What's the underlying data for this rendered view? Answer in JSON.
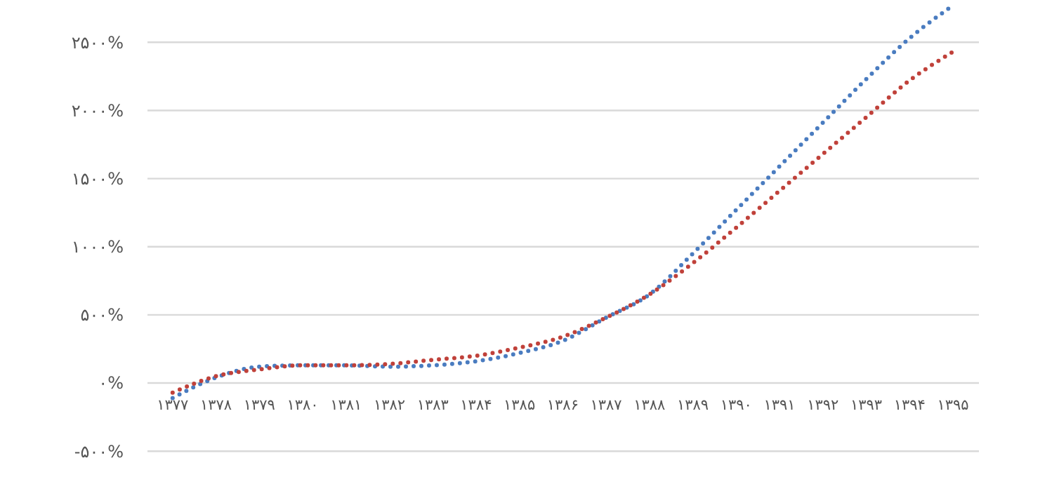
{
  "chart_data": {
    "type": "line",
    "categories": [
      "۱۳۷۷",
      "۱۳۷۸",
      "۱۳۷۹",
      "۱۳۸۰",
      "۱۳۸۱",
      "۱۳۸۲",
      "۱۳۸۳",
      "۱۳۸۴",
      "۱۳۸۵",
      "۱۳۸۶",
      "۱۳۸۷",
      "۱۳۸۸",
      "۱۳۸۹",
      "۱۳۹۰",
      "۱۳۹۱",
      "۱۳۹۲",
      "۱۳۹۳",
      "۱۳۹۴",
      "۱۳۹۵"
    ],
    "series": [
      {
        "color": "#4a7cc0",
        "values": [
          -110,
          40,
          120,
          130,
          130,
          120,
          130,
          160,
          220,
          310,
          480,
          650,
          950,
          1270,
          1590,
          1910,
          2230,
          2530,
          2770
        ]
      },
      {
        "color": "#c0413a",
        "values": [
          -70,
          50,
          100,
          130,
          130,
          140,
          170,
          200,
          260,
          340,
          480,
          650,
          880,
          1140,
          1410,
          1680,
          1950,
          2220,
          2430
        ]
      }
    ],
    "ylim": [
      -500,
      2800
    ],
    "yticks": [
      {
        "value": -500,
        "label": "-۵۰۰%"
      },
      {
        "value": 0,
        "label": "۰%"
      },
      {
        "value": 500,
        "label": "۵۰۰%"
      },
      {
        "value": 1000,
        "label": "۱۰۰۰%"
      },
      {
        "value": 1500,
        "label": "۱۵۰۰%"
      },
      {
        "value": 2000,
        "label": "۲۰۰۰%"
      },
      {
        "value": 2500,
        "label": "۲۵۰۰%"
      }
    ],
    "grid": "y",
    "line_style": "dotted",
    "marker": "none"
  }
}
